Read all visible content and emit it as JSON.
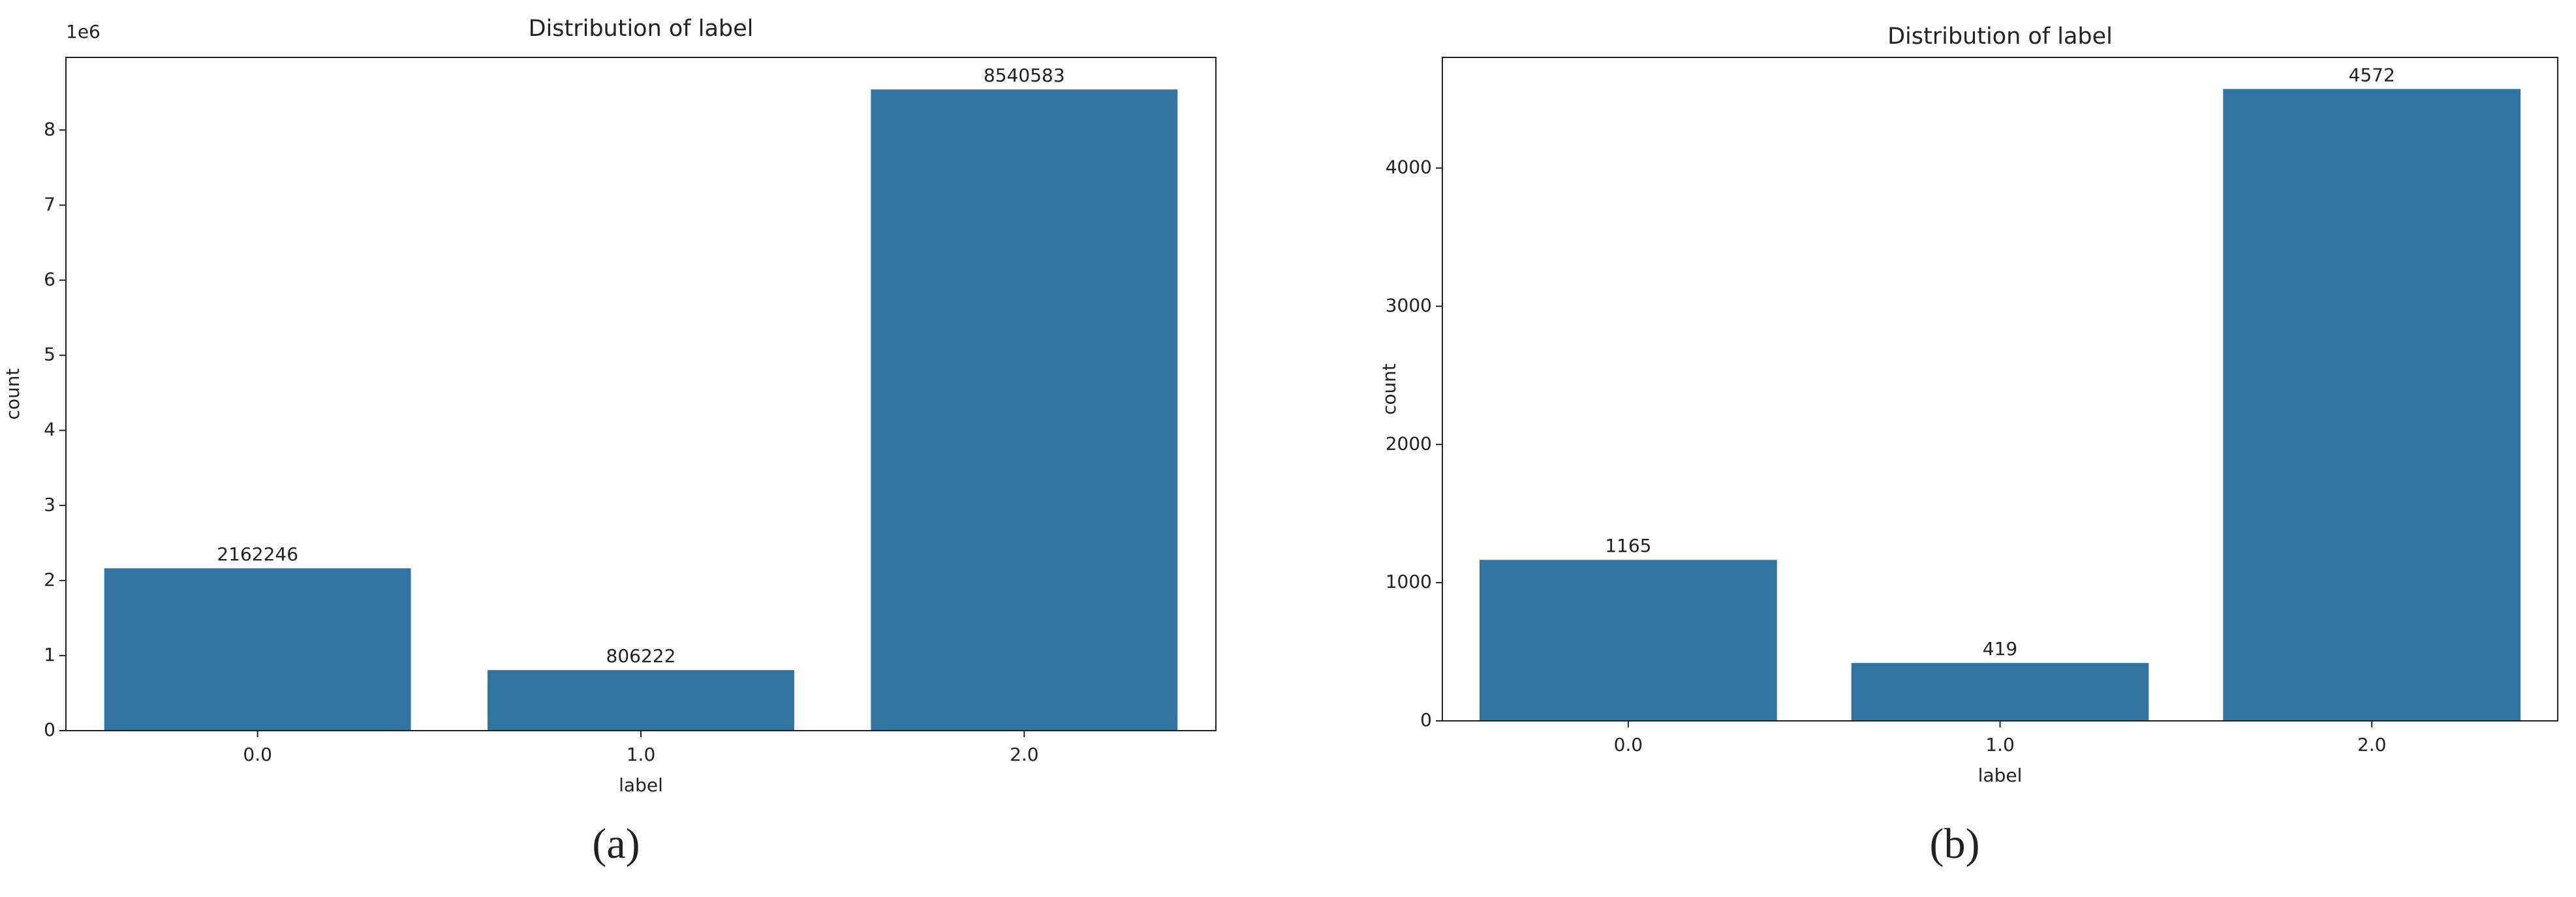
{
  "chart_data": [
    {
      "type": "bar",
      "title": "Distribution of label",
      "x_label": "label",
      "y_label": "count",
      "y_offset_text": "1e6",
      "caption": "(a)",
      "categories": [
        "0.0",
        "1.0",
        "2.0"
      ],
      "values": [
        2162246,
        806222,
        8540583
      ],
      "color": "#3274a1",
      "ylim": [
        0,
        8967612
      ],
      "yticks": [
        {
          "value": 0,
          "label": "0"
        },
        {
          "value": 1000000,
          "label": "1"
        },
        {
          "value": 2000000,
          "label": "2"
        },
        {
          "value": 3000000,
          "label": "3"
        },
        {
          "value": 4000000,
          "label": "4"
        },
        {
          "value": 5000000,
          "label": "5"
        },
        {
          "value": 6000000,
          "label": "6"
        },
        {
          "value": 7000000,
          "label": "7"
        },
        {
          "value": 8000000,
          "label": "8"
        }
      ],
      "grid": false
    },
    {
      "type": "bar",
      "title": "Distribution of label",
      "x_label": "label",
      "y_label": "count",
      "caption": "(b)",
      "categories": [
        "0.0",
        "1.0",
        "2.0"
      ],
      "values": [
        1165,
        419,
        4572
      ],
      "color": "#3274a1",
      "ylim": [
        0,
        4800.6
      ],
      "yticks": [
        0,
        1000,
        2000,
        3000,
        4000
      ],
      "grid": false
    }
  ]
}
